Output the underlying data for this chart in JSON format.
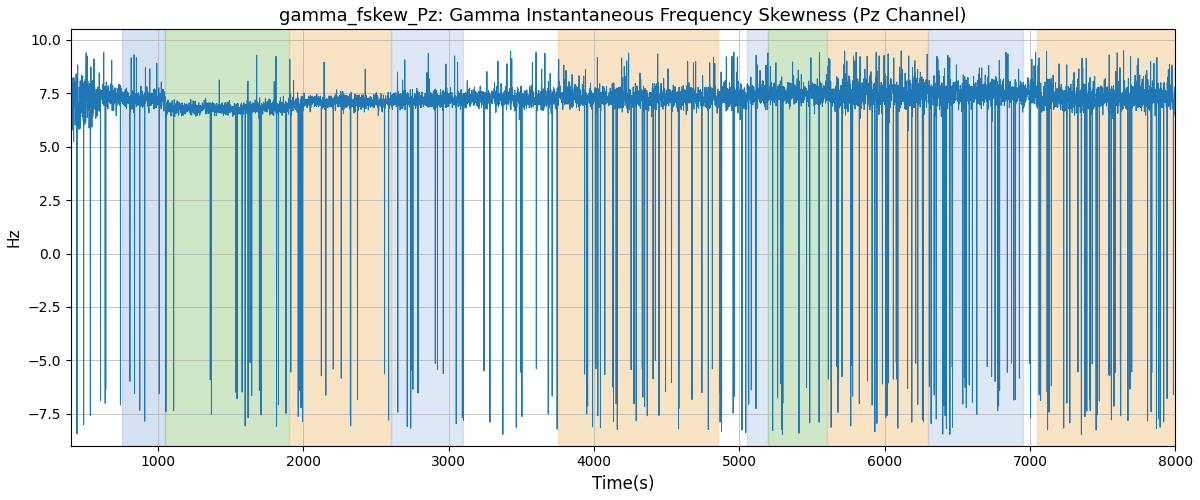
{
  "title": "gamma_fskew_Pz: Gamma Instantaneous Frequency Skewness (Pz Channel)",
  "xlabel": "Time(s)",
  "ylabel": "Hz",
  "xlim": [
    400,
    8000
  ],
  "ylim": [
    -9.0,
    10.5
  ],
  "yticks": [
    -7.5,
    -5.0,
    -2.5,
    0.0,
    2.5,
    5.0,
    7.5,
    10.0
  ],
  "xticks": [
    1000,
    2000,
    3000,
    4000,
    5000,
    6000,
    7000,
    8000
  ],
  "line_color": "#1f77b4",
  "line_width": 0.7,
  "grid_color": "#b0b0b0",
  "bands": [
    {
      "start": 750,
      "end": 1050,
      "color": "#aac4e8",
      "alpha": 0.5
    },
    {
      "start": 1050,
      "end": 1900,
      "color": "#90c87a",
      "alpha": 0.42
    },
    {
      "start": 1900,
      "end": 2600,
      "color": "#f5ca90",
      "alpha": 0.52
    },
    {
      "start": 2600,
      "end": 3100,
      "color": "#aac4e8",
      "alpha": 0.4
    },
    {
      "start": 3750,
      "end": 4850,
      "color": "#f5ca90",
      "alpha": 0.52
    },
    {
      "start": 5050,
      "end": 5200,
      "color": "#aac4e8",
      "alpha": 0.4
    },
    {
      "start": 5200,
      "end": 5600,
      "color": "#90c87a",
      "alpha": 0.42
    },
    {
      "start": 5600,
      "end": 6300,
      "color": "#f5ca90",
      "alpha": 0.52
    },
    {
      "start": 6300,
      "end": 6950,
      "color": "#aac4e8",
      "alpha": 0.4
    },
    {
      "start": 7050,
      "end": 8100,
      "color": "#f5ca90",
      "alpha": 0.52
    }
  ],
  "seed": 123,
  "t_start": 400,
  "t_end": 8001,
  "dt": 1.0
}
